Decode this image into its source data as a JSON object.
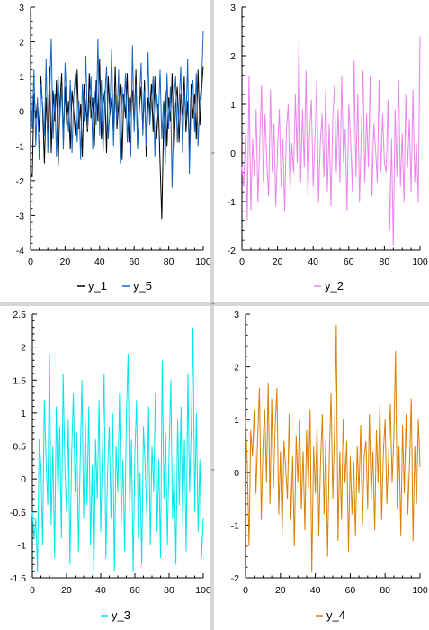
{
  "chart_data": [
    {
      "type": "line",
      "x": [
        0,
        1,
        2,
        3,
        4,
        5,
        6,
        7,
        8,
        9,
        10,
        11,
        12,
        13,
        14,
        15,
        16,
        17,
        18,
        19,
        20,
        21,
        22,
        23,
        24,
        25,
        26,
        27,
        28,
        29,
        30,
        31,
        32,
        33,
        34,
        35,
        36,
        37,
        38,
        39,
        40,
        41,
        42,
        43,
        44,
        45,
        46,
        47,
        48,
        49,
        50,
        51,
        52,
        53,
        54,
        55,
        56,
        57,
        58,
        59,
        60,
        61,
        62,
        63,
        64,
        65,
        66,
        67,
        68,
        69,
        70,
        71,
        72,
        73,
        74,
        75,
        76,
        77,
        78,
        79,
        80,
        81,
        82,
        83,
        84,
        85,
        86,
        87,
        88,
        89,
        90,
        91,
        92,
        93,
        94,
        95,
        96,
        97,
        98,
        99,
        100
      ],
      "series": [
        {
          "name": "y_1",
          "color": "#000000",
          "values": [
            -1.8,
            -1.9,
            0.5,
            -0.2,
            0.3,
            -0.6,
            1.0,
            0.1,
            -1.5,
            0.4,
            -0.8,
            1.3,
            -1.2,
            0.6,
            -0.3,
            0.9,
            -1.6,
            0.2,
            1.1,
            -0.9,
            0.7,
            -0.4,
            0.3,
            -1.1,
            0.6,
            0.0,
            -0.7,
            1.2,
            -0.5,
            0.2,
            -1.3,
            0.8,
            0.1,
            -0.6,
            1.1,
            -0.2,
            0.4,
            -1.0,
            0.9,
            -0.3,
            1.5,
            -0.8,
            0.2,
            0.6,
            -1.2,
            1.0,
            -0.1,
            0.4,
            -0.7,
            1.3,
            -0.5,
            0.2,
            0.8,
            -1.4,
            0.5,
            -0.2,
            1.1,
            -0.9,
            0.3,
            0.6,
            -0.4,
            1.2,
            -1.0,
            0.1,
            0.7,
            -0.5,
            0.9,
            -1.3,
            0.4,
            -0.1,
            0.8,
            -0.6,
            1.0,
            -0.8,
            0.2,
            -1.5,
            -3.1,
            -0.5,
            0.6,
            -1.0,
            0.4,
            -0.3,
            1.1,
            -1.2,
            0.2,
            0.7,
            -0.9,
            0.5,
            -0.1,
            1.0,
            -0.6,
            0.3,
            -1.1,
            0.8,
            -0.2,
            0.5,
            -0.8,
            1.2,
            -0.4,
            0.6,
            1.3
          ]
        },
        {
          "name": "y_5",
          "color": "#1565c0",
          "values": [
            0.9,
            -0.5,
            1.2,
            -1.0,
            0.4,
            -1.4,
            0.8,
            0.2,
            -0.7,
            1.5,
            -1.2,
            0.3,
            2.1,
            -0.8,
            0.5,
            -1.3,
            1.0,
            -0.2,
            0.7,
            -1.1,
            1.4,
            0.1,
            -0.6,
            0.9,
            -1.2,
            0.4,
            1.1,
            -0.9,
            0.3,
            -1.4,
            0.8,
            -0.3,
            1.6,
            -0.5,
            0.2,
            1.0,
            -1.1,
            0.6,
            -0.4,
            2.1,
            -0.7,
            0.9,
            -1.2,
            0.4,
            1.3,
            -0.8,
            0.1,
            1.8,
            -1.0,
            0.5,
            -0.3,
            1.2,
            -1.5,
            0.7,
            0.0,
            1.1,
            -0.9,
            0.4,
            -1.3,
            1.9,
            -0.6,
            0.8,
            -1.1,
            0.3,
            1.4,
            -0.7,
            0.6,
            -1.0,
            1.7,
            -0.4,
            0.2,
            1.0,
            -1.3,
            0.5,
            -0.2,
            1.2,
            -0.8,
            0.3,
            -1.6,
            1.1,
            -0.5,
            0.7,
            -2.2,
            0.4,
            1.0,
            -0.9,
            0.2,
            1.3,
            -1.2,
            0.6,
            -0.3,
            1.5,
            -1.8,
            0.4,
            0.9,
            -0.6,
            1.1,
            -1.0,
            0.3,
            0.8,
            2.3
          ]
        }
      ],
      "xlim": [
        0,
        100
      ],
      "ylim": [
        -4,
        3
      ],
      "xticks": [
        0,
        20,
        40,
        60,
        80,
        100
      ],
      "yticks": [
        -4,
        -3,
        -2,
        -1,
        0,
        1,
        2,
        3
      ],
      "legend_placement": "bottom"
    },
    {
      "type": "line",
      "x": [
        0,
        1,
        2,
        3,
        4,
        5,
        6,
        7,
        8,
        9,
        10,
        11,
        12,
        13,
        14,
        15,
        16,
        17,
        18,
        19,
        20,
        21,
        22,
        23,
        24,
        25,
        26,
        27,
        28,
        29,
        30,
        31,
        32,
        33,
        34,
        35,
        36,
        37,
        38,
        39,
        40,
        41,
        42,
        43,
        44,
        45,
        46,
        47,
        48,
        49,
        50,
        51,
        52,
        53,
        54,
        55,
        56,
        57,
        58,
        59,
        60,
        61,
        62,
        63,
        64,
        65,
        66,
        67,
        68,
        69,
        70,
        71,
        72,
        73,
        74,
        75,
        76,
        77,
        78,
        79,
        80,
        81,
        82,
        83,
        84,
        85,
        86,
        87,
        88,
        89,
        90,
        91,
        92,
        93,
        94,
        95,
        96,
        97,
        98,
        99,
        100
      ],
      "series": [
        {
          "name": "y_2",
          "color": "#ee82ee",
          "values": [
            -0.3,
            -0.7,
            0.4,
            -1.4,
            1.6,
            -1.2,
            0.3,
            -0.5,
            0.9,
            -1.0,
            0.2,
            1.4,
            -0.6,
            0.8,
            -0.2,
            -0.9,
            1.3,
            -0.4,
            0.6,
            -1.1,
            0.1,
            0.9,
            -0.7,
            0.3,
            -1.2,
            0.5,
            1.0,
            -0.8,
            0.2,
            -0.4,
            1.2,
            -0.2,
            2.3,
            -0.6,
            0.9,
            -0.3,
            1.7,
            -0.9,
            0.4,
            1.1,
            -0.7,
            0.3,
            1.5,
            -1.0,
            0.2,
            0.8,
            -0.5,
            1.3,
            -0.8,
            0.6,
            -1.1,
            0.7,
            1.4,
            -0.4,
            0.9,
            -0.6,
            1.6,
            -0.2,
            0.5,
            -1.2,
            1.0,
            0.3,
            -0.8,
            1.9,
            -0.5,
            1.2,
            -1.0,
            0.4,
            1.7,
            -0.6,
            0.8,
            -0.3,
            1.6,
            -0.9,
            0.6,
            0.1,
            -0.6,
            1.5,
            -0.4,
            0.8,
            -0.2,
            -0.4,
            1.1,
            -1.6,
            0.3,
            -1.9,
            0.9,
            -0.5,
            1.5,
            -0.7,
            0.4,
            -1.0,
            1.2,
            -0.3,
            0.7,
            -0.8,
            1.3,
            -0.6,
            0.2,
            -1.0,
            2.4
          ]
        }
      ],
      "xlim": [
        0,
        100
      ],
      "ylim": [
        -2,
        3
      ],
      "xticks": [
        0,
        20,
        40,
        60,
        80,
        100
      ],
      "yticks": [
        -2,
        -1,
        0,
        1,
        2,
        3
      ],
      "legend_placement": "bottom"
    },
    {
      "type": "line",
      "x": [
        0,
        1,
        2,
        3,
        4,
        5,
        6,
        7,
        8,
        9,
        10,
        11,
        12,
        13,
        14,
        15,
        16,
        17,
        18,
        19,
        20,
        21,
        22,
        23,
        24,
        25,
        26,
        27,
        28,
        29,
        30,
        31,
        32,
        33,
        34,
        35,
        36,
        37,
        38,
        39,
        40,
        41,
        42,
        43,
        44,
        45,
        46,
        47,
        48,
        49,
        50,
        51,
        52,
        53,
        54,
        55,
        56,
        57,
        58,
        59,
        60,
        61,
        62,
        63,
        64,
        65,
        66,
        67,
        68,
        69,
        70,
        71,
        72,
        73,
        74,
        75,
        76,
        77,
        78,
        79,
        80,
        81,
        82,
        83,
        84,
        85,
        86,
        87,
        88,
        89,
        90,
        91,
        92,
        93,
        94,
        95,
        96,
        97,
        98,
        99,
        100
      ],
      "series": [
        {
          "name": "y_3",
          "color": "#00e5ee",
          "values": [
            -0.5,
            -0.9,
            -0.6,
            -1.4,
            0.6,
            0.2,
            -1.0,
            1.2,
            0.3,
            -0.4,
            1.9,
            -0.7,
            0.5,
            -1.2,
            1.1,
            -0.3,
            0.8,
            -0.9,
            1.6,
            0.2,
            -0.5,
            0.9,
            -1.3,
            0.4,
            1.3,
            -0.2,
            0.7,
            -1.1,
            0.3,
            1.5,
            -0.6,
            0.9,
            -0.4,
            1.1,
            -1.0,
            0.2,
            -1.5,
            0.6,
            -0.3,
            1.2,
            -0.8,
            0.4,
            1.6,
            -1.2,
            0.1,
            0.8,
            -0.6,
            1.0,
            -1.4,
            0.5,
            -0.2,
            1.3,
            -0.7,
            0.3,
            -1.1,
            0.9,
            1.9,
            -0.5,
            0.6,
            -1.4,
            0.4,
            1.2,
            -0.9,
            0.1,
            -1.3,
            0.8,
            0.2,
            -0.6,
            1.1,
            -1.0,
            0.5,
            -0.2,
            1.3,
            -0.8,
            0.3,
            -1.2,
            1.8,
            -0.3,
            0.7,
            -1.0,
            0.4,
            1.5,
            -0.6,
            0.2,
            -1.3,
            0.9,
            -0.4,
            1.1,
            -0.7,
            0.6,
            -1.1,
            1.6,
            -0.2,
            0.8,
            2.3,
            -0.5,
            1.0,
            -0.8,
            0.3,
            -1.2,
            -0.6
          ]
        }
      ],
      "xlim": [
        0,
        100
      ],
      "ylim": [
        -1.5,
        2.5
      ],
      "xticks": [
        0,
        20,
        40,
        60,
        80,
        100
      ],
      "yticks": [
        -1.5,
        -1,
        -0.5,
        0,
        0.5,
        1,
        1.5,
        2,
        2.5
      ],
      "legend_placement": "bottom"
    },
    {
      "type": "line",
      "x": [
        0,
        1,
        2,
        3,
        4,
        5,
        6,
        7,
        8,
        9,
        10,
        11,
        12,
        13,
        14,
        15,
        16,
        17,
        18,
        19,
        20,
        21,
        22,
        23,
        24,
        25,
        26,
        27,
        28,
        29,
        30,
        31,
        32,
        33,
        34,
        35,
        36,
        37,
        38,
        39,
        40,
        41,
        42,
        43,
        44,
        45,
        46,
        47,
        48,
        49,
        50,
        51,
        52,
        53,
        54,
        55,
        56,
        57,
        58,
        59,
        60,
        61,
        62,
        63,
        64,
        65,
        66,
        67,
        68,
        69,
        70,
        71,
        72,
        73,
        74,
        75,
        76,
        77,
        78,
        79,
        80,
        81,
        82,
        83,
        84,
        85,
        86,
        87,
        88,
        89,
        90,
        91,
        92,
        93,
        94,
        95,
        96,
        97,
        98,
        99,
        100
      ],
      "series": [
        {
          "name": "y_4",
          "color": "#d98000",
          "values": [
            1.0,
            0.2,
            -1.4,
            0.8,
            0.3,
            1.2,
            -0.4,
            0.7,
            1.6,
            -0.9,
            0.5,
            1.2,
            -0.2,
            1.7,
            -0.6,
            1.4,
            -0.3,
            0.9,
            1.6,
            -0.8,
            0.4,
            -1.2,
            0.6,
            0.1,
            -0.5,
            1.1,
            -0.9,
            0.3,
            -1.4,
            0.7,
            -0.2,
            1.0,
            -0.7,
            0.4,
            -1.1,
            0.8,
            -0.3,
            1.2,
            -1.9,
            0.5,
            -0.4,
            0.9,
            -1.2,
            0.2,
            1.1,
            -0.8,
            0.6,
            -1.6,
            0.3,
            1.5,
            -0.5,
            0.7,
            2.8,
            -1.3,
            0.4,
            -0.9,
            1.0,
            -0.2,
            0.6,
            -1.5,
            0.3,
            -0.8,
            0.2,
            -1.2,
            0.5,
            -0.4,
            0.9,
            -1.0,
            0.3,
            0.6,
            -0.7,
            1.1,
            -0.5,
            0.4,
            -1.1,
            0.8,
            -0.2,
            1.3,
            -0.9,
            0.4,
            1.0,
            -0.6,
            0.3,
            1.3,
            -0.2,
            0.7,
            2.3,
            -0.7,
            0.5,
            -1.2,
            0.9,
            -0.4,
            1.1,
            -0.8,
            0.2,
            1.4,
            -1.3,
            0.5,
            -0.6,
            1.0,
            0.1
          ]
        }
      ],
      "xlim": [
        0,
        100
      ],
      "ylim": [
        -2,
        3
      ],
      "xticks": [
        0,
        20,
        40,
        60,
        80,
        100
      ],
      "yticks": [
        -2,
        -1,
        0,
        1,
        2,
        3
      ],
      "legend_placement": "bottom"
    }
  ]
}
